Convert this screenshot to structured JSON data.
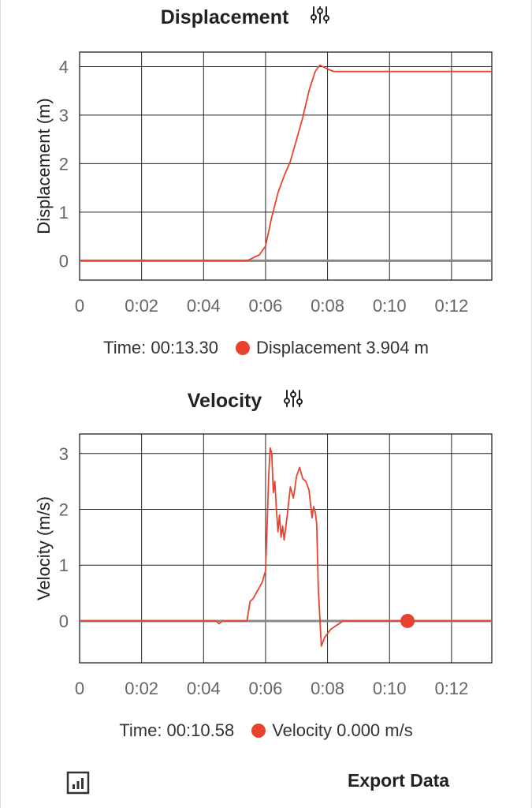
{
  "charts": [
    {
      "title": "Displacement",
      "readout": {
        "time_label": "Time: 00:13.30",
        "value_label": "Displacement 3.904 m"
      }
    },
    {
      "title": "Velocity",
      "readout": {
        "time_label": "Time: 00:10.58",
        "value_label": "Velocity 0.000 m/s"
      }
    }
  ],
  "footer": {
    "export_label": "Export Data"
  },
  "colors": {
    "series": "#e8432e",
    "zero_line": "#888888",
    "grid": "#222222"
  },
  "chart_data": [
    {
      "type": "line",
      "title": "Displacement",
      "xlabel": "",
      "ylabel": "Displacement (m)",
      "xlim_seconds": [
        0,
        13.3
      ],
      "ylim": [
        -0.4,
        4.3
      ],
      "x_ticks": [
        "0",
        "0:02",
        "0:04",
        "0:06",
        "0:08",
        "0:10",
        "0:12"
      ],
      "y_ticks": [
        "0",
        "1",
        "2",
        "3",
        "4"
      ],
      "series": [
        {
          "name": "Displacement",
          "x": [
            0,
            4.0,
            5.4,
            5.8,
            6.0,
            6.2,
            6.4,
            6.6,
            6.8,
            7.0,
            7.2,
            7.4,
            7.6,
            7.75,
            8.0,
            8.2,
            13.3
          ],
          "y": [
            0,
            0,
            0,
            0.12,
            0.3,
            0.9,
            1.4,
            1.75,
            2.05,
            2.5,
            2.95,
            3.5,
            3.9,
            4.03,
            3.95,
            3.9,
            3.9
          ]
        }
      ],
      "highlight": {
        "x": 13.3,
        "y": 3.904
      }
    },
    {
      "type": "line",
      "title": "Velocity",
      "xlabel": "",
      "ylabel": "Velocity (m/s)",
      "xlim_seconds": [
        0,
        13.3
      ],
      "ylim": [
        -0.75,
        3.35
      ],
      "x_ticks": [
        "0",
        "0:02",
        "0:04",
        "0:06",
        "0:08",
        "0:10",
        "0:12"
      ],
      "y_ticks": [
        "0",
        "1",
        "2",
        "3"
      ],
      "series": [
        {
          "name": "Velocity",
          "x": [
            0,
            4.4,
            4.5,
            4.6,
            5.4,
            5.5,
            5.6,
            5.7,
            5.8,
            5.9,
            6.0,
            6.05,
            6.1,
            6.15,
            6.2,
            6.25,
            6.3,
            6.35,
            6.4,
            6.45,
            6.5,
            6.55,
            6.6,
            6.7,
            6.8,
            6.9,
            7.0,
            7.1,
            7.2,
            7.3,
            7.4,
            7.5,
            7.55,
            7.6,
            7.65,
            7.7,
            7.8,
            7.9,
            8.1,
            8.5,
            9.0,
            13.3
          ],
          "y": [
            0,
            0,
            -0.05,
            0,
            0,
            0.35,
            0.4,
            0.5,
            0.6,
            0.7,
            0.9,
            1.7,
            2.6,
            3.1,
            3.0,
            2.3,
            2.5,
            2.0,
            1.6,
            1.9,
            1.5,
            1.7,
            1.45,
            1.9,
            2.4,
            2.2,
            2.6,
            2.75,
            2.55,
            2.5,
            2.35,
            1.85,
            2.05,
            1.95,
            1.75,
            0.6,
            -0.45,
            -0.3,
            -0.15,
            0,
            0,
            0
          ]
        }
      ],
      "highlight": {
        "x": 10.58,
        "y": 0.0
      }
    }
  ]
}
